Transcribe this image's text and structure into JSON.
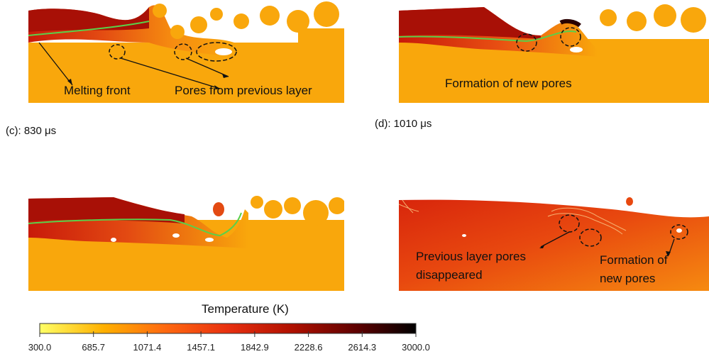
{
  "panels": {
    "a": {
      "annotations": {
        "melting_front": "Melting front",
        "pores_prev": "Pores from previous layer"
      }
    },
    "b": {
      "annotations": {
        "new_pores": "Formation of new pores"
      }
    },
    "c": {
      "time_label": "(c): 830 μs"
    },
    "d": {
      "time_label": "(d): 1010 μs",
      "annotations": {
        "prev_disappeared_1": "Previous layer pores",
        "prev_disappeared_2": "disappeared",
        "new_pores_1": "Formation of",
        "new_pores_2": "new pores"
      }
    }
  },
  "colorbar": {
    "title": "Temperature (K)",
    "min": 300.0,
    "max": 3000.0,
    "ticks": [
      "300.0",
      "685.7",
      "1071.4",
      "1457.1",
      "1842.9",
      "2228.6",
      "2614.3",
      "3000.0"
    ],
    "colors": [
      "#ffff66",
      "#ffb000",
      "#ff6a10",
      "#e83010",
      "#b01000",
      "#5a0000",
      "#000000"
    ]
  }
}
